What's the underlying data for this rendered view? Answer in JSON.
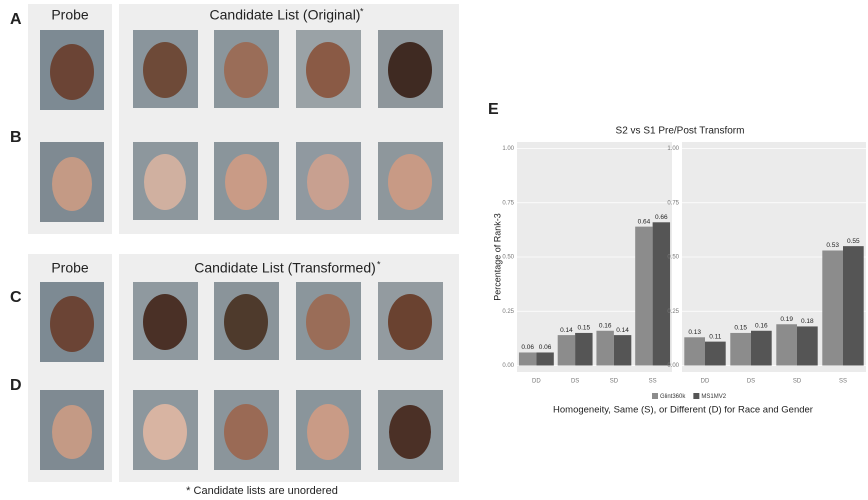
{
  "panels": [
    {
      "label": "A"
    },
    {
      "label": "B"
    },
    {
      "label": "C"
    },
    {
      "label": "D"
    },
    {
      "label": "E"
    }
  ],
  "headers": {
    "probe_top": "Probe",
    "candidates_top": "Candidate List (Original)",
    "probe_bottom": "Probe",
    "candidates_bottom": "Candidate List (Transformed)",
    "marker": "*"
  },
  "footnote": "* Candidate lists are unordered",
  "chart_data": {
    "type": "bar",
    "title": "S2 vs S1 Pre/Post Transform",
    "x_label": "Homogeneity, Same (S), or Different (D) for Race and Gender",
    "y_label": "Percentage of Rank-3",
    "categories": [
      "DD",
      "DS",
      "SD",
      "SS"
    ],
    "ylim": [
      -0.03,
      1.03
    ],
    "yticks": [
      {
        "value": 0,
        "label": "0.00"
      },
      {
        "value": 0.25,
        "label": "0.25"
      },
      {
        "value": 0.5,
        "label": "0.50"
      },
      {
        "value": 0.75,
        "label": "0.75"
      },
      {
        "value": 1,
        "label": "1.00"
      }
    ],
    "grid": true,
    "series": [
      {
        "name": "Glint360k",
        "color": "#8c8c8c"
      },
      {
        "name": "MS1MV2",
        "color": "#555555"
      }
    ],
    "facets": [
      {
        "series": [
          {
            "values": [
              0.06,
              0.14,
              0.16,
              0.64
            ]
          },
          {
            "values": [
              0.06,
              0.15,
              0.14,
              0.66
            ]
          }
        ]
      },
      {
        "series": [
          {
            "values": [
              0.13,
              0.15,
              0.19,
              0.53
            ]
          },
          {
            "values": [
              0.11,
              0.16,
              0.18,
              0.55
            ]
          }
        ]
      }
    ]
  }
}
